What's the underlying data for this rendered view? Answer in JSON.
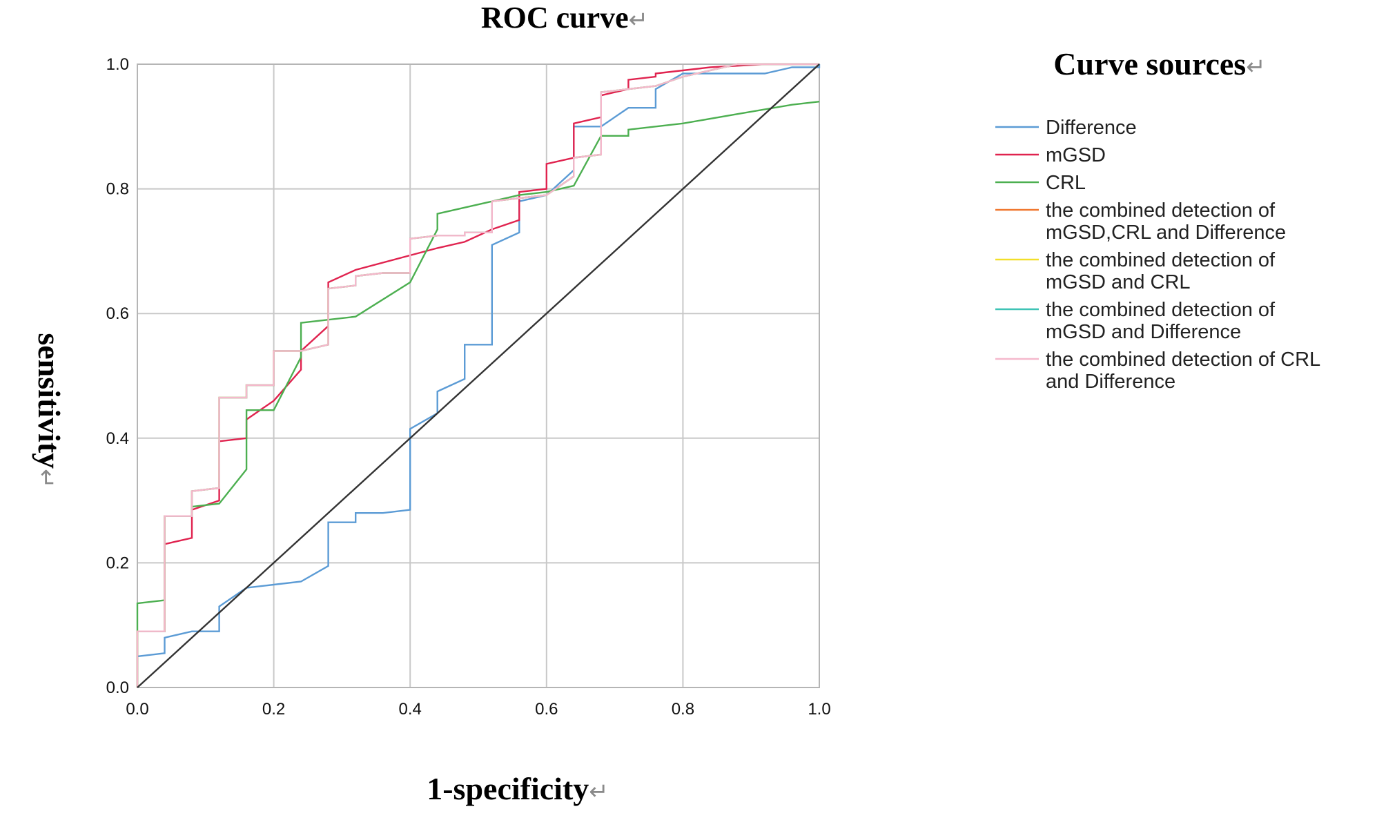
{
  "chart_data": {
    "type": "line",
    "title": "ROC curve",
    "xlabel": "1-specificity",
    "ylabel": "sensitivity",
    "return_mark": "↵",
    "legend_title": "Curve sources",
    "xlim": [
      0,
      1
    ],
    "ylim": [
      0,
      1
    ],
    "grid": true,
    "legend_position": "right",
    "x_ticks": [
      "0.0",
      "0.2",
      "0.4",
      "0.6",
      "0.8",
      "1.0"
    ],
    "y_ticks": [
      "0.0",
      "0.2",
      "0.4",
      "0.6",
      "0.8",
      "1.0"
    ],
    "reference_line": {
      "x": [
        0,
        1
      ],
      "y": [
        0,
        1
      ],
      "color": "#333333"
    },
    "series": [
      {
        "name": "Difference",
        "legend_lines": [
          "Difference"
        ],
        "color": "#5b9bd5",
        "x": [
          0,
          0,
          0.04,
          0.04,
          0.08,
          0.08,
          0.12,
          0.12,
          0.16,
          0.2,
          0.24,
          0.28,
          0.28,
          0.32,
          0.32,
          0.36,
          0.4,
          0.4,
          0.44,
          0.44,
          0.48,
          0.48,
          0.52,
          0.52,
          0.56,
          0.56,
          0.6,
          0.64,
          0.64,
          0.68,
          0.72,
          0.76,
          0.76,
          0.8,
          0.92,
          0.96,
          1.0,
          1.0
        ],
        "y": [
          0,
          0.05,
          0.055,
          0.08,
          0.09,
          0.09,
          0.09,
          0.13,
          0.16,
          0.165,
          0.17,
          0.195,
          0.265,
          0.265,
          0.28,
          0.28,
          0.285,
          0.415,
          0.44,
          0.475,
          0.495,
          0.55,
          0.55,
          0.71,
          0.73,
          0.78,
          0.79,
          0.83,
          0.9,
          0.9,
          0.93,
          0.93,
          0.96,
          0.985,
          0.985,
          0.995,
          0.995,
          1.0
        ]
      },
      {
        "name": "mGSD",
        "legend_lines": [
          "mGSD"
        ],
        "color": "#e0234f",
        "x": [
          0,
          0,
          0.04,
          0.04,
          0.08,
          0.08,
          0.12,
          0.12,
          0.16,
          0.16,
          0.2,
          0.24,
          0.24,
          0.28,
          0.28,
          0.32,
          0.44,
          0.48,
          0.52,
          0.56,
          0.56,
          0.6,
          0.6,
          0.64,
          0.64,
          0.68,
          0.68,
          0.72,
          0.72,
          0.76,
          0.76,
          0.8,
          0.84,
          0.92,
          1.0
        ],
        "y": [
          0,
          0.09,
          0.09,
          0.23,
          0.24,
          0.285,
          0.3,
          0.395,
          0.4,
          0.43,
          0.46,
          0.51,
          0.54,
          0.58,
          0.65,
          0.67,
          0.705,
          0.715,
          0.735,
          0.75,
          0.795,
          0.8,
          0.84,
          0.85,
          0.905,
          0.915,
          0.95,
          0.96,
          0.975,
          0.98,
          0.985,
          0.99,
          0.995,
          1.0,
          1.0
        ]
      },
      {
        "name": "CRL",
        "legend_lines": [
          "CRL"
        ],
        "color": "#4caf50",
        "x": [
          0,
          0,
          0.04,
          0.04,
          0.08,
          0.08,
          0.12,
          0.16,
          0.16,
          0.2,
          0.24,
          0.24,
          0.28,
          0.32,
          0.4,
          0.44,
          0.44,
          0.52,
          0.56,
          0.6,
          0.64,
          0.68,
          0.72,
          0.72,
          0.8,
          0.88,
          0.96,
          1.0
        ],
        "y": [
          0.09,
          0.135,
          0.14,
          0.275,
          0.275,
          0.29,
          0.295,
          0.35,
          0.445,
          0.445,
          0.53,
          0.585,
          0.59,
          0.595,
          0.65,
          0.735,
          0.76,
          0.78,
          0.79,
          0.795,
          0.805,
          0.885,
          0.885,
          0.895,
          0.905,
          0.92,
          0.935,
          0.94
        ]
      },
      {
        "name": "the combined detection of mGSD,CRL and Difference",
        "legend_lines": [
          "the combined detection of",
          "mGSD,CRL and Difference"
        ],
        "color": "#f07830",
        "x": [
          0,
          0,
          0.04,
          0.04,
          0.08,
          0.08,
          0.12,
          0.12,
          0.16,
          0.16,
          0.2,
          0.2,
          0.24,
          0.28,
          0.28,
          0.32,
          0.32,
          0.36,
          0.4,
          0.4,
          0.44,
          0.48,
          0.48,
          0.52,
          0.52,
          0.56,
          0.6,
          0.64,
          0.64,
          0.68,
          0.68,
          0.72,
          0.76,
          0.8,
          0.84,
          0.88,
          0.96,
          1.0
        ],
        "y": [
          0,
          0.09,
          0.09,
          0.275,
          0.275,
          0.315,
          0.32,
          0.465,
          0.465,
          0.485,
          0.485,
          0.54,
          0.54,
          0.55,
          0.64,
          0.645,
          0.66,
          0.665,
          0.665,
          0.72,
          0.725,
          0.725,
          0.73,
          0.73,
          0.78,
          0.785,
          0.79,
          0.82,
          0.85,
          0.855,
          0.955,
          0.96,
          0.965,
          0.98,
          0.99,
          1.0,
          1.0,
          1.0
        ]
      },
      {
        "name": "the combined detection of mGSD and CRL",
        "legend_lines": [
          "the combined detection of",
          "mGSD and CRL"
        ],
        "color": "#f2df2a",
        "x": [
          0,
          0,
          0.04,
          0.04,
          0.08,
          0.08,
          0.12,
          0.12,
          0.16,
          0.16,
          0.2,
          0.2,
          0.24,
          0.28,
          0.28,
          0.32,
          0.32,
          0.36,
          0.4,
          0.4,
          0.44,
          0.48,
          0.48,
          0.52,
          0.52,
          0.56,
          0.6,
          0.64,
          0.64,
          0.68,
          0.68,
          0.72,
          0.76,
          0.8,
          0.84,
          0.88,
          0.96,
          1.0
        ],
        "y": [
          0,
          0.09,
          0.09,
          0.275,
          0.275,
          0.315,
          0.32,
          0.465,
          0.465,
          0.485,
          0.485,
          0.54,
          0.54,
          0.55,
          0.64,
          0.645,
          0.66,
          0.665,
          0.665,
          0.72,
          0.725,
          0.725,
          0.73,
          0.73,
          0.78,
          0.785,
          0.79,
          0.82,
          0.85,
          0.855,
          0.955,
          0.96,
          0.965,
          0.98,
          0.99,
          1.0,
          1.0,
          1.0
        ]
      },
      {
        "name": "the combined detection of mGSD and Difference",
        "legend_lines": [
          "the combined detection of",
          "mGSD and Difference"
        ],
        "color": "#3ec3b5",
        "x": [
          0,
          0,
          0.04,
          0.04,
          0.08,
          0.08,
          0.12,
          0.12,
          0.16,
          0.16,
          0.2,
          0.2,
          0.24,
          0.28,
          0.28,
          0.32,
          0.32,
          0.36,
          0.4,
          0.4,
          0.44,
          0.48,
          0.48,
          0.52,
          0.52,
          0.56,
          0.6,
          0.64,
          0.64,
          0.68,
          0.68,
          0.72,
          0.76,
          0.8,
          0.84,
          0.88,
          0.96,
          1.0
        ],
        "y": [
          0,
          0.09,
          0.09,
          0.275,
          0.275,
          0.315,
          0.32,
          0.465,
          0.465,
          0.485,
          0.485,
          0.54,
          0.54,
          0.55,
          0.64,
          0.645,
          0.66,
          0.665,
          0.665,
          0.72,
          0.725,
          0.725,
          0.73,
          0.73,
          0.78,
          0.785,
          0.79,
          0.82,
          0.85,
          0.855,
          0.955,
          0.96,
          0.965,
          0.98,
          0.99,
          1.0,
          1.0,
          1.0
        ]
      },
      {
        "name": "the combined detection of CRL and Difference",
        "legend_lines": [
          "the combined detection of CRL",
          "and Difference"
        ],
        "color": "#f5b8cc",
        "x": [
          0,
          0,
          0.04,
          0.04,
          0.08,
          0.08,
          0.12,
          0.12,
          0.16,
          0.16,
          0.2,
          0.2,
          0.24,
          0.28,
          0.28,
          0.32,
          0.32,
          0.36,
          0.4,
          0.4,
          0.44,
          0.48,
          0.48,
          0.52,
          0.52,
          0.56,
          0.6,
          0.64,
          0.64,
          0.68,
          0.68,
          0.72,
          0.76,
          0.8,
          0.84,
          0.88,
          0.96,
          1.0
        ],
        "y": [
          0,
          0.09,
          0.09,
          0.275,
          0.275,
          0.315,
          0.32,
          0.465,
          0.465,
          0.485,
          0.485,
          0.54,
          0.54,
          0.55,
          0.64,
          0.645,
          0.66,
          0.665,
          0.665,
          0.72,
          0.725,
          0.725,
          0.73,
          0.73,
          0.78,
          0.785,
          0.79,
          0.82,
          0.85,
          0.855,
          0.955,
          0.96,
          0.965,
          0.98,
          0.99,
          1.0,
          1.0,
          1.0
        ]
      }
    ]
  }
}
